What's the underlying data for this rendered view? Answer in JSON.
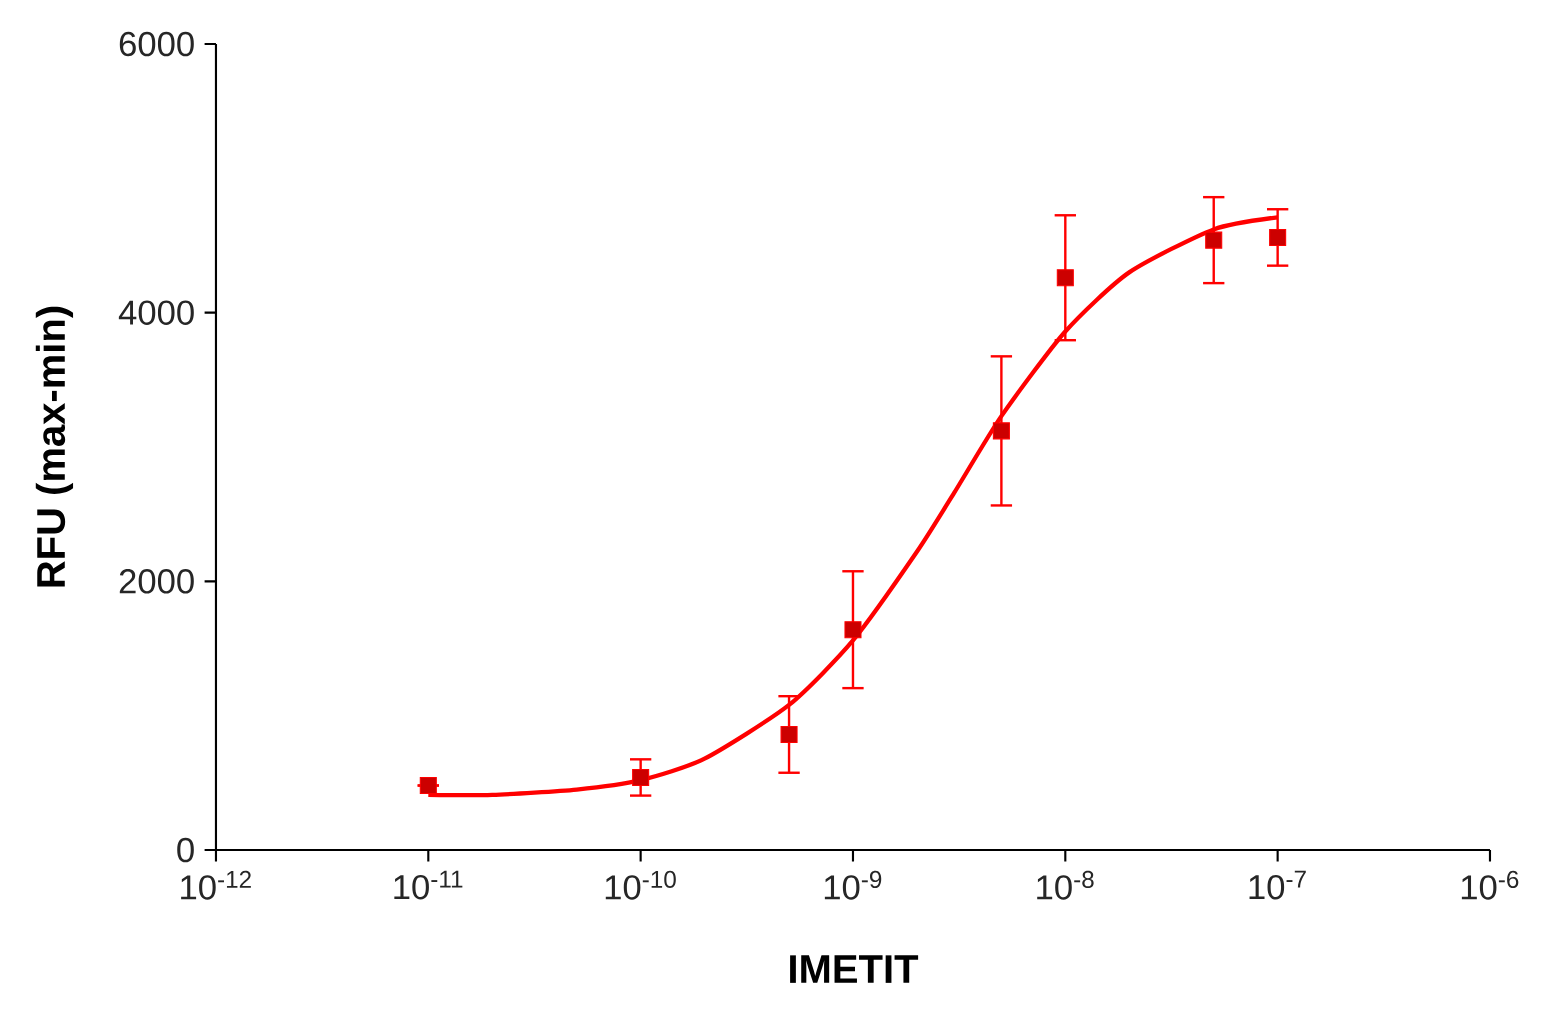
{
  "chart_data": {
    "type": "scatter",
    "xlabel": "IMETIT",
    "ylabel": "RFU (max-min)",
    "log": "x",
    "line_style": "solid",
    "xlim": [
      1e-12,
      1e-06
    ],
    "ylim": [
      0,
      6000
    ],
    "xticks": [
      {
        "value": 1e-12,
        "label": "10$^{-12}$"
      },
      {
        "value": 1e-11,
        "label": "10$^{-11}$"
      },
      {
        "value": 1e-10,
        "label": "10$^{-10}$"
      },
      {
        "value": 1e-09,
        "label": "10$^{-9}$"
      },
      {
        "value": 1e-08,
        "label": "10$^{-8}$"
      },
      {
        "value": 1e-07,
        "label": "10$^{-7}$"
      },
      {
        "value": 1e-06,
        "label": "10$^{-6}$"
      }
    ],
    "yticks": [
      0,
      2000,
      4000,
      6000
    ],
    "series": [
      {
        "type": "line",
        "marker": "none",
        "color": "#ff0000",
        "x": [
          1e-11,
          2e-11,
          5e-11,
          1e-10,
          2e-10,
          5e-10,
          1e-09,
          2e-09,
          3e-09,
          5e-09,
          1e-08,
          2e-08,
          5e-08,
          1e-07
        ],
        "values": [
          410,
          410,
          450,
          520,
          680,
          1080,
          1560,
          2220,
          2660,
          3230,
          3860,
          4300,
          4620,
          4710
        ]
      },
      {
        "marker": "square",
        "color": "#ff0000",
        "x": [
          1e-11,
          1e-10,
          5e-10,
          1e-09,
          5e-09,
          1e-08,
          5e-08,
          1e-07
        ],
        "values": [
          480,
          540,
          860,
          1640,
          3120,
          4260,
          4540,
          4560
        ],
        "errors": [
          null,
          135,
          285,
          435,
          555,
          465,
          320,
          210
        ]
      }
    ]
  }
}
